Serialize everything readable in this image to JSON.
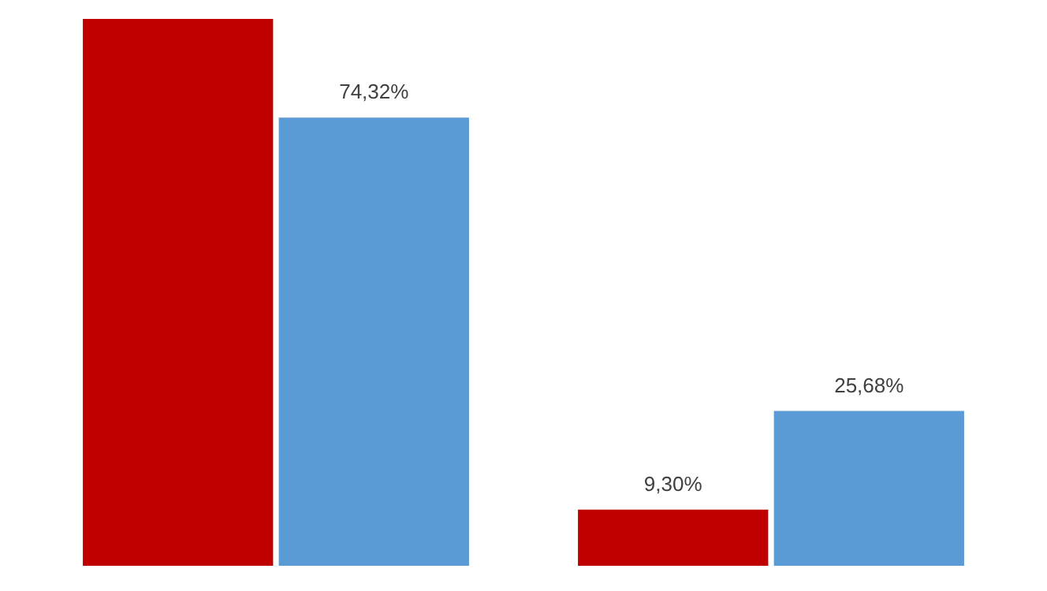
{
  "chart_data": {
    "type": "bar",
    "categories": [
      null,
      null
    ],
    "series": [
      {
        "color": "#c00000",
        "values": [
          90.7,
          9.3
        ],
        "value_labels": [
          null,
          "9,30%"
        ]
      },
      {
        "color": "#5b9bd5",
        "values": [
          74.32,
          25.68
        ],
        "value_labels": [
          "74,32%",
          "25,68%"
        ]
      }
    ]
  }
}
